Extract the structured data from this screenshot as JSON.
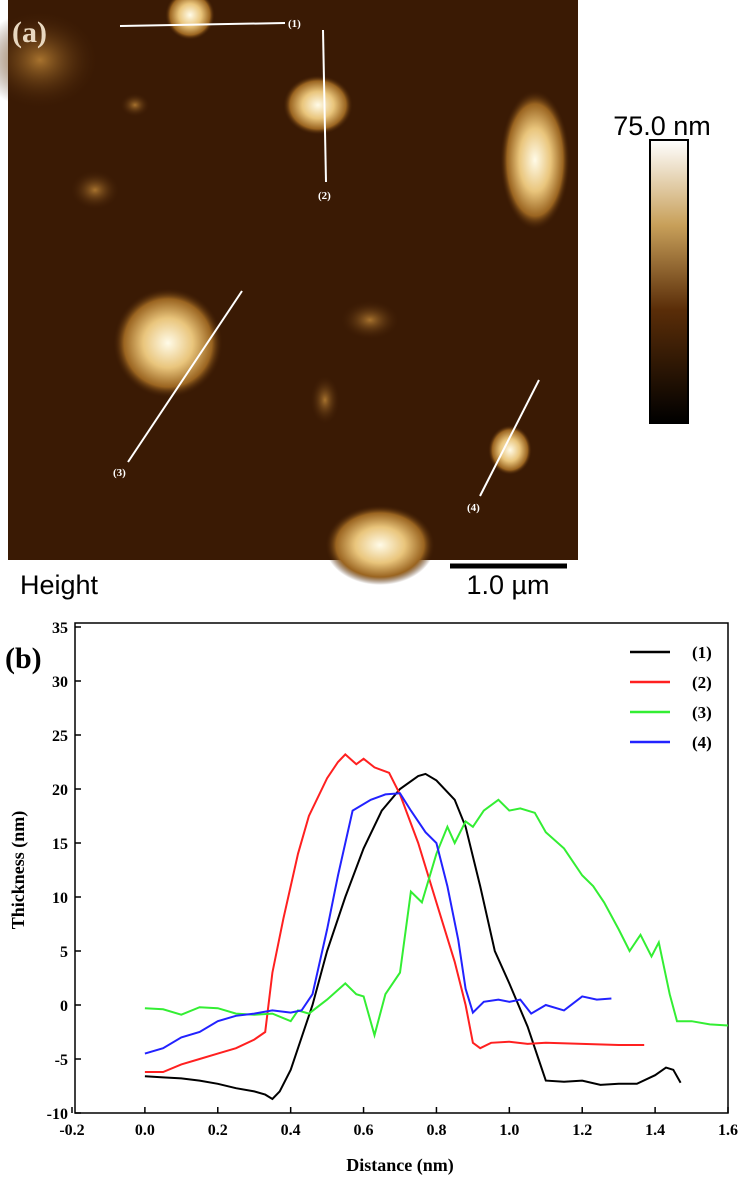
{
  "panel_a": {
    "label": "(a)",
    "line_labels": [
      "(1)",
      "(2)",
      "(3)",
      "(4)"
    ],
    "colorbar_label": "75.0 nm",
    "channel": "Height",
    "scale_bar": "1.0 µm"
  },
  "chart_data": {
    "type": "line",
    "panel_label": "(b)",
    "x_label": "Distance (nm)",
    "y_label": "Thickness (nm)",
    "xlim": [
      -0.2,
      1.6
    ],
    "ylim": [
      -10,
      35
    ],
    "xticks": [
      -0.2,
      {
        "value": 0,
        "label": "0.0"
      },
      0.2,
      0.4,
      0.6,
      0.8,
      {
        "value": 1,
        "label": "1.0"
      },
      1.2,
      1.4,
      1.6
    ],
    "yticks": [
      -10,
      -5,
      0,
      5,
      10,
      15,
      20,
      25,
      30,
      35
    ],
    "legend": "top-right",
    "series": [
      {
        "name": "(1)",
        "color": "#000000",
        "x": [
          0.0,
          0.05,
          0.1,
          0.15,
          0.2,
          0.25,
          0.3,
          0.33,
          0.35,
          0.37,
          0.4,
          0.43,
          0.46,
          0.5,
          0.55,
          0.6,
          0.65,
          0.7,
          0.75,
          0.77,
          0.8,
          0.85,
          0.88,
          0.92,
          0.96,
          1.0,
          1.05,
          1.08,
          1.1,
          1.15,
          1.2,
          1.25,
          1.3,
          1.35,
          1.4,
          1.43,
          1.45,
          1.47
        ],
        "values": [
          -6.6,
          -6.7,
          -6.8,
          -7.0,
          -7.3,
          -7.7,
          -8.0,
          -8.3,
          -8.7,
          -8.0,
          -6.0,
          -3.0,
          0.0,
          5.0,
          10.0,
          14.5,
          18.0,
          20.0,
          21.2,
          21.4,
          20.8,
          19.0,
          16.5,
          11.0,
          5.0,
          2.0,
          -2.0,
          -5.0,
          -7.0,
          -7.1,
          -7.0,
          -7.4,
          -7.3,
          -7.3,
          -6.5,
          -5.8,
          -6.0,
          -7.2
        ]
      },
      {
        "name": "(2)",
        "color": "#ff2020",
        "x": [
          0.0,
          0.05,
          0.1,
          0.15,
          0.2,
          0.25,
          0.3,
          0.33,
          0.35,
          0.38,
          0.42,
          0.45,
          0.5,
          0.53,
          0.55,
          0.58,
          0.6,
          0.63,
          0.67,
          0.7,
          0.75,
          0.8,
          0.85,
          0.88,
          0.9,
          0.92,
          0.95,
          1.0,
          1.05,
          1.1,
          1.2,
          1.3,
          1.37
        ],
        "values": [
          -6.2,
          -6.2,
          -5.5,
          -5.0,
          -4.5,
          -4.0,
          -3.2,
          -2.5,
          3.0,
          8.0,
          14.0,
          17.5,
          21.0,
          22.5,
          23.2,
          22.3,
          22.8,
          22.0,
          21.5,
          19.5,
          15.0,
          9.5,
          4.0,
          0.0,
          -3.5,
          -4.0,
          -3.5,
          -3.4,
          -3.6,
          -3.5,
          -3.6,
          -3.7,
          -3.7
        ]
      },
      {
        "name": "(3)",
        "color": "#33ee33",
        "x": [
          0.0,
          0.05,
          0.1,
          0.15,
          0.2,
          0.25,
          0.3,
          0.35,
          0.4,
          0.42,
          0.45,
          0.5,
          0.55,
          0.58,
          0.6,
          0.63,
          0.66,
          0.7,
          0.73,
          0.76,
          0.8,
          0.83,
          0.85,
          0.88,
          0.9,
          0.93,
          0.97,
          1.0,
          1.03,
          1.07,
          1.1,
          1.15,
          1.2,
          1.23,
          1.26,
          1.3,
          1.33,
          1.36,
          1.39,
          1.41,
          1.44,
          1.46,
          1.5,
          1.55,
          1.6
        ],
        "values": [
          -0.3,
          -0.4,
          -0.9,
          -0.2,
          -0.3,
          -0.8,
          -0.9,
          -0.8,
          -1.5,
          -0.5,
          -0.8,
          0.5,
          2.0,
          1.0,
          0.8,
          -2.8,
          1.0,
          3.0,
          10.5,
          9.5,
          14.0,
          16.5,
          15.0,
          17.0,
          16.5,
          18.0,
          19.0,
          18.0,
          18.2,
          17.8,
          16.0,
          14.5,
          12.0,
          11.0,
          9.5,
          7.0,
          5.0,
          6.5,
          4.5,
          5.8,
          1.0,
          -1.5,
          -1.5,
          -1.8,
          -1.9
        ]
      },
      {
        "name": "(4)",
        "color": "#2222ff",
        "x": [
          0.0,
          0.05,
          0.1,
          0.15,
          0.2,
          0.25,
          0.3,
          0.35,
          0.4,
          0.43,
          0.46,
          0.5,
          0.53,
          0.57,
          0.62,
          0.66,
          0.7,
          0.73,
          0.77,
          0.8,
          0.83,
          0.86,
          0.88,
          0.9,
          0.93,
          0.97,
          1.0,
          1.03,
          1.06,
          1.1,
          1.15,
          1.2,
          1.24,
          1.28
        ],
        "values": [
          -4.5,
          -4.0,
          -3.0,
          -2.5,
          -1.5,
          -1.0,
          -0.8,
          -0.5,
          -0.7,
          -0.5,
          1.0,
          7.0,
          12.0,
          18.0,
          19.0,
          19.5,
          19.6,
          18.0,
          16.0,
          15.0,
          11.0,
          6.0,
          1.5,
          -0.7,
          0.3,
          0.5,
          0.3,
          0.5,
          -0.8,
          0.0,
          -0.5,
          0.8,
          0.5,
          0.6
        ]
      }
    ]
  }
}
